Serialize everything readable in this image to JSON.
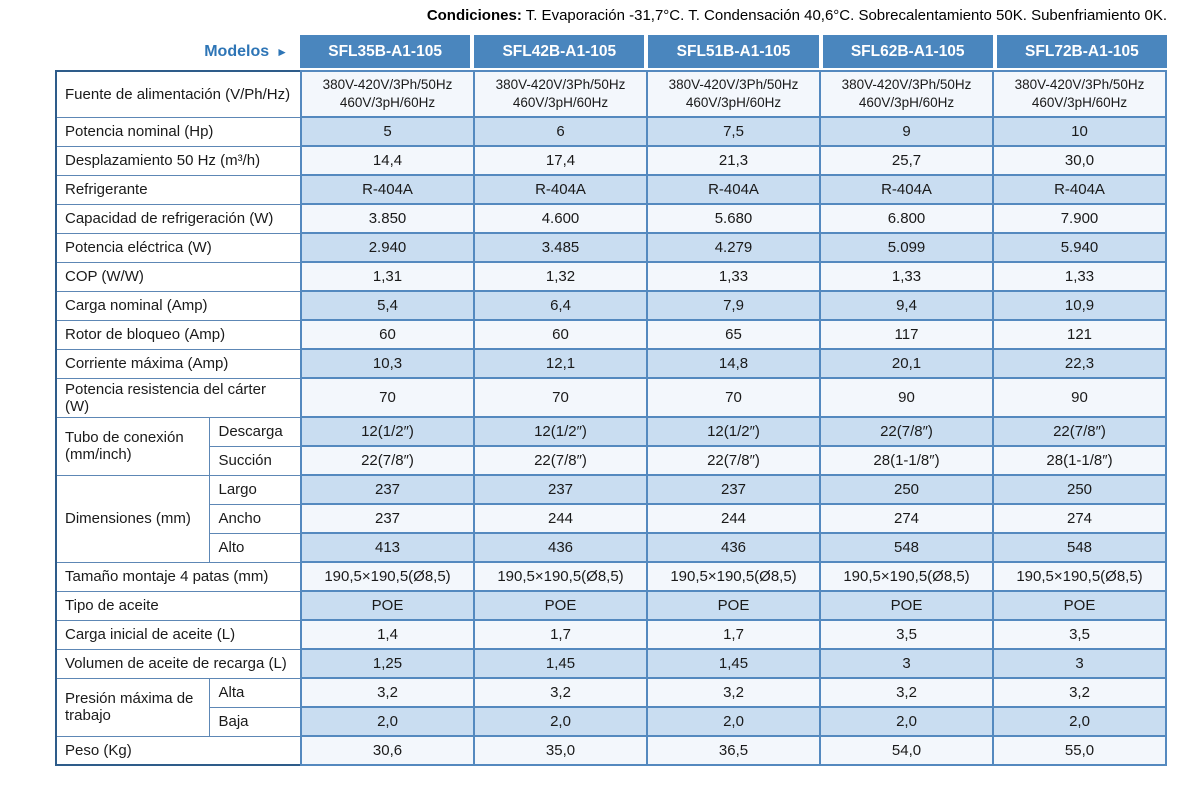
{
  "conditions": {
    "prefix": "Condiciones:",
    "text": " T. Evaporación -31,7°C.  T. Condensación 40,6°C.  Sobrecalentamiento 50K.  Subenfriamiento 0K."
  },
  "header": {
    "models_label": "Modelos",
    "arrow": "►",
    "models": [
      "SFL35B-A1-105",
      "SFL42B-A1-105",
      "SFL51B-A1-105",
      "SFL62B-A1-105",
      "SFL72B-A1-105"
    ]
  },
  "colors": {
    "header_blue": "#4a86be",
    "row_light_blue": "#c9ddf1",
    "row_white": "#f3f7fc",
    "border_blue": "#5489bf",
    "models_label_blue": "#2e75b6"
  },
  "table": {
    "rows": [
      {
        "label": "Fuente de alimentación (V/Ph/Hz)",
        "shade": "white",
        "h": 46,
        "values": [
          [
            "380V-420V/3Ph/50Hz",
            "460V/3pH/60Hz"
          ],
          [
            "380V-420V/3Ph/50Hz",
            "460V/3pH/60Hz"
          ],
          [
            "380V-420V/3Ph/50Hz",
            "460V/3pH/60Hz"
          ],
          [
            "380V-420V/3Ph/50Hz",
            "460V/3pH/60Hz"
          ],
          [
            "380V-420V/3Ph/50Hz",
            "460V/3pH/60Hz"
          ]
        ]
      },
      {
        "label": "Potencia nominal (Hp)",
        "shade": "blue",
        "values": [
          "5",
          "6",
          "7,5",
          "9",
          "10"
        ]
      },
      {
        "label": "Desplazamiento 50 Hz (m³/h)",
        "shade": "white",
        "values": [
          "14,4",
          "17,4",
          "21,3",
          "25,7",
          "30,0"
        ]
      },
      {
        "label": "Refrigerante",
        "shade": "blue",
        "values": [
          "R-404A",
          "R-404A",
          "R-404A",
          "R-404A",
          "R-404A"
        ]
      },
      {
        "label": "Capacidad de refrigeración (W)",
        "shade": "white",
        "values": [
          "3.850",
          "4.600",
          "5.680",
          "6.800",
          "7.900"
        ]
      },
      {
        "label": "Potencia eléctrica (W)",
        "shade": "blue",
        "values": [
          "2.940",
          "3.485",
          "4.279",
          "5.099",
          "5.940"
        ]
      },
      {
        "label": "COP (W/W)",
        "shade": "white",
        "values": [
          "1,31",
          "1,32",
          "1,33",
          "1,33",
          "1,33"
        ]
      },
      {
        "label": "Carga nominal (Amp)",
        "shade": "blue",
        "values": [
          "5,4",
          "6,4",
          "7,9",
          "9,4",
          "10,9"
        ]
      },
      {
        "label": "Rotor de bloqueo (Amp)",
        "shade": "white",
        "values": [
          "60",
          "60",
          "65",
          "117",
          "121"
        ]
      },
      {
        "label": "Corriente máxima (Amp)",
        "shade": "blue",
        "values": [
          "10,3",
          "12,1",
          "14,8",
          "20,1",
          "22,3"
        ]
      },
      {
        "label": "Potencia resistencia del cárter (W)",
        "shade": "white",
        "values": [
          "70",
          "70",
          "70",
          "90",
          "90"
        ]
      },
      {
        "group": "Tubo de conexión (mm/inch)",
        "group_span": 2,
        "sublabel": "Descarga",
        "shade": "blue",
        "values": [
          "12(1/2″)",
          "12(1/2″)",
          "12(1/2″)",
          "22(7/8″)",
          "22(7/8″)"
        ]
      },
      {
        "sublabel": "Succión",
        "shade": "white",
        "values": [
          "22(7/8″)",
          "22(7/8″)",
          "22(7/8″)",
          "28(1-1/8″)",
          "28(1-1/8″)"
        ]
      },
      {
        "group": "Dimensiones (mm)",
        "group_span": 3,
        "sublabel": "Largo",
        "shade": "blue",
        "values": [
          "237",
          "237",
          "237",
          "250",
          "250"
        ]
      },
      {
        "sublabel": "Ancho",
        "shade": "white",
        "values": [
          "237",
          "244",
          "244",
          "274",
          "274"
        ]
      },
      {
        "sublabel": "Alto",
        "shade": "blue",
        "values": [
          "413",
          "436",
          "436",
          "548",
          "548"
        ]
      },
      {
        "label": "Tamaño montaje 4 patas (mm)",
        "shade": "white",
        "values": [
          "190,5×190,5(Ø8,5)",
          "190,5×190,5(Ø8,5)",
          "190,5×190,5(Ø8,5)",
          "190,5×190,5(Ø8,5)",
          "190,5×190,5(Ø8,5)"
        ]
      },
      {
        "label": "Tipo de aceite",
        "shade": "blue",
        "values": [
          "POE",
          "POE",
          "POE",
          "POE",
          "POE"
        ]
      },
      {
        "label": "Carga inicial de aceite (L)",
        "shade": "white",
        "values": [
          "1,4",
          "1,7",
          "1,7",
          "3,5",
          "3,5"
        ]
      },
      {
        "label": "Volumen de aceite de recarga (L)",
        "shade": "blue",
        "values": [
          "1,25",
          "1,45",
          "1,45",
          "3",
          "3"
        ]
      },
      {
        "group": "Presión máxima de trabajo",
        "group_span": 2,
        "sublabel": "Alta",
        "shade": "white",
        "values": [
          "3,2",
          "3,2",
          "3,2",
          "3,2",
          "3,2"
        ]
      },
      {
        "sublabel": "Baja",
        "shade": "blue",
        "values": [
          "2,0",
          "2,0",
          "2,0",
          "2,0",
          "2,0"
        ]
      },
      {
        "label": "Peso (Kg)",
        "shade": "white",
        "values": [
          "30,6",
          "35,0",
          "36,5",
          "54,0",
          "55,0"
        ]
      }
    ]
  }
}
